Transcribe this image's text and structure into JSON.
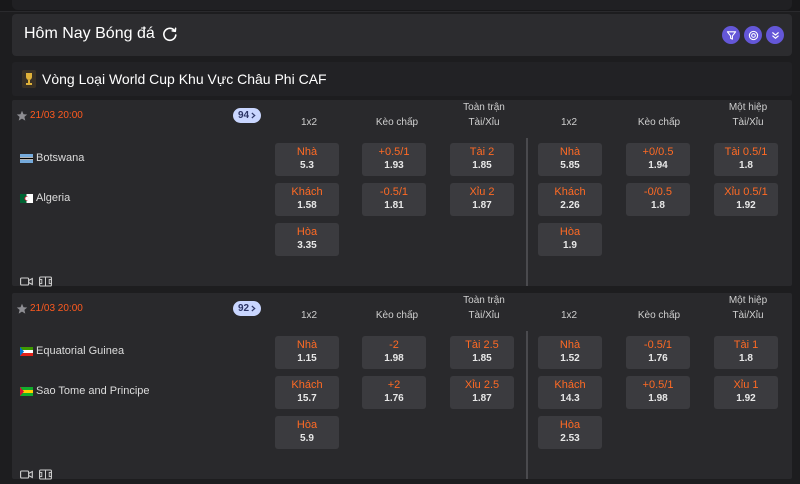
{
  "header": {
    "title": "Hôm Nay Bóng đá"
  },
  "league": {
    "name": "Vòng Loại World Cup Khu Vực Châu Phi CAF"
  },
  "columns": {
    "c1x2": "1x2",
    "handicap": "Kèo chấp",
    "ft_top": "Toàn trận",
    "ou": "Tài/Xỉu",
    "ht_top": "Một hiệp"
  },
  "matches": [
    {
      "time": "21/03 20:00",
      "count": "94",
      "home": "Botswana",
      "away": "Algeria",
      "ft": {
        "home_1x2": {
          "label": "Nhà",
          "odd": "5.3"
        },
        "away_1x2": {
          "label": "Khách",
          "odd": "1.58"
        },
        "draw_1x2": {
          "label": "Hòa",
          "odd": "3.35"
        },
        "hcap_home": {
          "label": "+0.5/1",
          "odd": "1.93"
        },
        "hcap_away": {
          "label": "-0.5/1",
          "odd": "1.81"
        },
        "over": {
          "label": "Tài 2",
          "odd": "1.85"
        },
        "under": {
          "label": "Xỉu 2",
          "odd": "1.87"
        }
      },
      "ht": {
        "home_1x2": {
          "label": "Nhà",
          "odd": "5.85"
        },
        "away_1x2": {
          "label": "Khách",
          "odd": "2.26"
        },
        "draw_1x2": {
          "label": "Hòa",
          "odd": "1.9"
        },
        "hcap_home": {
          "label": "+0/0.5",
          "odd": "1.94"
        },
        "hcap_away": {
          "label": "-0/0.5",
          "odd": "1.8"
        },
        "over": {
          "label": "Tài 0.5/1",
          "odd": "1.8"
        },
        "under": {
          "label": "Xỉu 0.5/1",
          "odd": "1.92"
        }
      }
    },
    {
      "time": "21/03 20:00",
      "count": "92",
      "home": "Equatorial Guinea",
      "away": "Sao Tome and Principe",
      "ft": {
        "home_1x2": {
          "label": "Nhà",
          "odd": "1.15"
        },
        "away_1x2": {
          "label": "Khách",
          "odd": "15.7"
        },
        "draw_1x2": {
          "label": "Hòa",
          "odd": "5.9"
        },
        "hcap_home": {
          "label": "-2",
          "odd": "1.98"
        },
        "hcap_away": {
          "label": "+2",
          "odd": "1.76"
        },
        "over": {
          "label": "Tài 2.5",
          "odd": "1.85"
        },
        "under": {
          "label": "Xỉu 2.5",
          "odd": "1.87"
        }
      },
      "ht": {
        "home_1x2": {
          "label": "Nhà",
          "odd": "1.52"
        },
        "away_1x2": {
          "label": "Khách",
          "odd": "14.3"
        },
        "draw_1x2": {
          "label": "Hòa",
          "odd": "2.53"
        },
        "hcap_home": {
          "label": "-0.5/1",
          "odd": "1.76"
        },
        "hcap_away": {
          "label": "+0.5/1",
          "odd": "1.98"
        },
        "over": {
          "label": "Tài 1",
          "odd": "1.8"
        },
        "under": {
          "label": "Xỉu 1",
          "odd": "1.92"
        }
      }
    }
  ],
  "colors": {
    "accent": "#ff6a24",
    "time": "#ff5a1f",
    "icon_bg": "#6457d8",
    "badge_bg": "#c9d6ff"
  },
  "icons": [
    "refresh-icon",
    "filter-icon",
    "target-icon",
    "collapse-icon",
    "trophy-icon",
    "star-icon",
    "video-icon",
    "pitch-icon",
    "chevron-right-icon"
  ]
}
